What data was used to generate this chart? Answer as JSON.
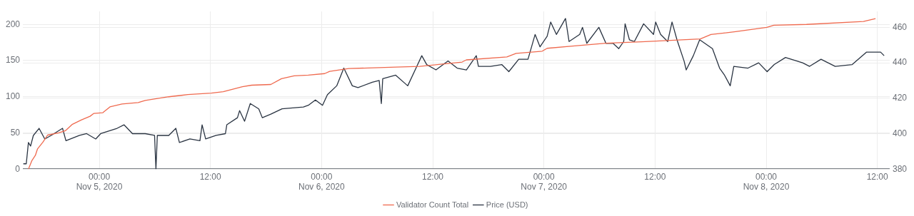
{
  "chart_data": {
    "type": "line",
    "marker": "none",
    "line_style": "solid",
    "grid": true,
    "legend": "bottom",
    "xlim": [
      "2020-11-04T15:45",
      "2020-11-08T13:20"
    ],
    "xticks": [
      {
        "value": "2020-11-05T00:00",
        "label": "00:00\nNov 5, 2020"
      },
      {
        "value": "2020-11-05T12:00",
        "label": "12:00"
      },
      {
        "value": "2020-11-06T00:00",
        "label": "00:00\nNov 6, 2020"
      },
      {
        "value": "2020-11-06T12:00",
        "label": "12:00"
      },
      {
        "value": "2020-11-07T00:00",
        "label": "00:00\nNov 7, 2020"
      },
      {
        "value": "2020-11-07T12:00",
        "label": "12:00"
      },
      {
        "value": "2020-11-08T00:00",
        "label": "00:00\nNov 8, 2020"
      },
      {
        "value": "2020-11-08T12:00",
        "label": "12:00"
      }
    ],
    "ylim": [
      0,
      218
    ],
    "yticks": [
      0,
      50,
      100,
      150,
      200
    ],
    "y2lim": [
      380,
      469
    ],
    "y2ticks": [
      380,
      400,
      420,
      440,
      460
    ],
    "series": [
      {
        "name": "Validator Count Total",
        "color": "#ef6a4f",
        "x": [
          "2020-11-04T16:21",
          "2020-11-04T16:44",
          "2020-11-04T17:06",
          "2020-11-04T17:20",
          "2020-11-04T17:54",
          "2020-11-04T18:25",
          "2020-11-04T19:36",
          "2020-11-04T20:20",
          "2020-11-04T21:06",
          "2020-11-04T22:05",
          "2020-11-04T23:00",
          "2020-11-04T23:25",
          "2020-11-05T00:23",
          "2020-11-05T01:09",
          "2020-11-05T02:27",
          "2020-11-05T04:12",
          "2020-11-05T04:58",
          "2020-11-05T07:30",
          "2020-11-05T09:34",
          "2020-11-05T12:05",
          "2020-11-05T13:23",
          "2020-11-05T15:27",
          "2020-11-05T16:27",
          "2020-11-05T18:31",
          "2020-11-05T19:40",
          "2020-11-05T21:02",
          "2020-11-05T22:34",
          "2020-11-06T00:20",
          "2020-11-06T00:52",
          "2020-11-06T02:56",
          "2020-11-06T08:00",
          "2020-11-06T10:35",
          "2020-11-06T15:10",
          "2020-11-06T15:38",
          "2020-11-06T20:00",
          "2020-11-06T21:00",
          "2020-11-06T23:49",
          "2020-11-07T00:21",
          "2020-11-07T03:06",
          "2020-11-07T06:42",
          "2020-11-07T10:32",
          "2020-11-07T16:53",
          "2020-11-07T18:02",
          "2020-11-07T20:42",
          "2020-11-08T00:04",
          "2020-11-08T00:50",
          "2020-11-08T04:21",
          "2020-11-08T10:30",
          "2020-11-08T11:48"
        ],
        "values": [
          0,
          12,
          19,
          28,
          37,
          47,
          50,
          53,
          62,
          68,
          73,
          77,
          78,
          86,
          90,
          92,
          95,
          100,
          103,
          105,
          107,
          114,
          116,
          117,
          125,
          129,
          130,
          132,
          135,
          139,
          141,
          142,
          148,
          151,
          155,
          160,
          163,
          167,
          170,
          174,
          176,
          180,
          186,
          190,
          196,
          199,
          200,
          204,
          208
        ]
      },
      {
        "name": "Price (USD)",
        "color": "#2a3442",
        "axis": "y2",
        "x": [
          "2020-11-04T15:48",
          "2020-11-04T16:07",
          "2020-11-04T16:21",
          "2020-11-04T16:35",
          "2020-11-04T16:53",
          "2020-11-04T17:30",
          "2020-11-04T18:07",
          "2020-11-04T18:48",
          "2020-11-04T20:02",
          "2020-11-04T20:24",
          "2020-11-04T21:52",
          "2020-11-04T22:38",
          "2020-11-04T23:37",
          "2020-11-05T00:09",
          "2020-11-05T01:55",
          "2020-11-05T02:40",
          "2020-11-05T03:35",
          "2020-11-05T04:58",
          "2020-11-05T05:58",
          "2020-11-05T06:07",
          "2020-11-05T06:16",
          "2020-11-05T07:30",
          "2020-11-05T08:16",
          "2020-11-05T08:39",
          "2020-11-05T09:47",
          "2020-11-05T10:52",
          "2020-11-05T11:06",
          "2020-11-05T11:29",
          "2020-11-05T12:37",
          "2020-11-05T13:37",
          "2020-11-05T13:46",
          "2020-11-05T14:55",
          "2020-11-05T15:09",
          "2020-11-05T15:41",
          "2020-11-05T16:18",
          "2020-11-05T17:13",
          "2020-11-05T17:36",
          "2020-11-05T18:31",
          "2020-11-05T19:44",
          "2020-11-05T22:02",
          "2020-11-05T22:34",
          "2020-11-05T23:20",
          "2020-11-06T00:06",
          "2020-11-06T00:38",
          "2020-11-06T01:38",
          "2020-11-06T02:24",
          "2020-11-06T03:19",
          "2020-11-06T03:56",
          "2020-11-06T05:28",
          "2020-11-06T06:13",
          "2020-11-06T06:27",
          "2020-11-06T06:36",
          "2020-11-06T08:00",
          "2020-11-06T09:18",
          "2020-11-06T10:17",
          "2020-11-06T10:49",
          "2020-11-06T11:21",
          "2020-11-06T12:21",
          "2020-11-06T13:39",
          "2020-11-06T14:38",
          "2020-11-06T15:38",
          "2020-11-06T16:42",
          "2020-11-06T16:56",
          "2020-11-06T18:14",
          "2020-11-06T19:27",
          "2020-11-06T20:13",
          "2020-11-06T21:17",
          "2020-11-06T22:17",
          "2020-11-06T23:03",
          "2020-11-06T23:35",
          "2020-11-07T00:21",
          "2020-11-07T00:44",
          "2020-11-07T01:21",
          "2020-11-07T02:20",
          "2020-11-07T02:43",
          "2020-11-07T03:52",
          "2020-11-07T04:10",
          "2020-11-07T04:38",
          "2020-11-07T05:56",
          "2020-11-07T06:42",
          "2020-11-07T07:28",
          "2020-11-07T08:05",
          "2020-11-07T08:37",
          "2020-11-07T08:46",
          "2020-11-07T09:14",
          "2020-11-07T09:46",
          "2020-11-07T10:46",
          "2020-11-07T11:50",
          "2020-11-07T12:04",
          "2020-11-07T12:36",
          "2020-11-07T13:22",
          "2020-11-07T13:50",
          "2020-11-07T14:22",
          "2020-11-07T15:08",
          "2020-11-07T15:22",
          "2020-11-07T16:08",
          "2020-11-07T16:49",
          "2020-11-07T18:12",
          "2020-11-07T18:58",
          "2020-11-07T19:30",
          "2020-11-07T20:07",
          "2020-11-07T20:30",
          "2020-11-07T22:02",
          "2020-11-07T23:11",
          "2020-11-08T00:06",
          "2020-11-08T00:52",
          "2020-11-08T02:05",
          "2020-11-08T03:56",
          "2020-11-08T04:41",
          "2020-11-08T05:55",
          "2020-11-08T07:27",
          "2020-11-08T09:17",
          "2020-11-08T10:49",
          "2020-11-08T12:21",
          "2020-11-08T12:44"
        ],
        "values": [
          383,
          383,
          395,
          393,
          399,
          403,
          397,
          399,
          403,
          396,
          399,
          400,
          397,
          400,
          403,
          405,
          400,
          400,
          399,
          380,
          399,
          399,
          403,
          395,
          397,
          396,
          405,
          397,
          399,
          400,
          405,
          409,
          413,
          407,
          417,
          414,
          409,
          411,
          414,
          415,
          416,
          419,
          416,
          422,
          427,
          437,
          427,
          426,
          429,
          430,
          417,
          431,
          433,
          427,
          438,
          444,
          439,
          436,
          441,
          437,
          436,
          444,
          438,
          438,
          439,
          435,
          442,
          442,
          456,
          449,
          455,
          463,
          456,
          465,
          452,
          456,
          460,
          451,
          460,
          451,
          451,
          448,
          452,
          462,
          453,
          452,
          462,
          456,
          463,
          456,
          452,
          463,
          453,
          441,
          436,
          444,
          453,
          448,
          437,
          433,
          427,
          438,
          437,
          440,
          435,
          439,
          443,
          440,
          438,
          442,
          438,
          439,
          446,
          446,
          444
        ]
      }
    ]
  }
}
